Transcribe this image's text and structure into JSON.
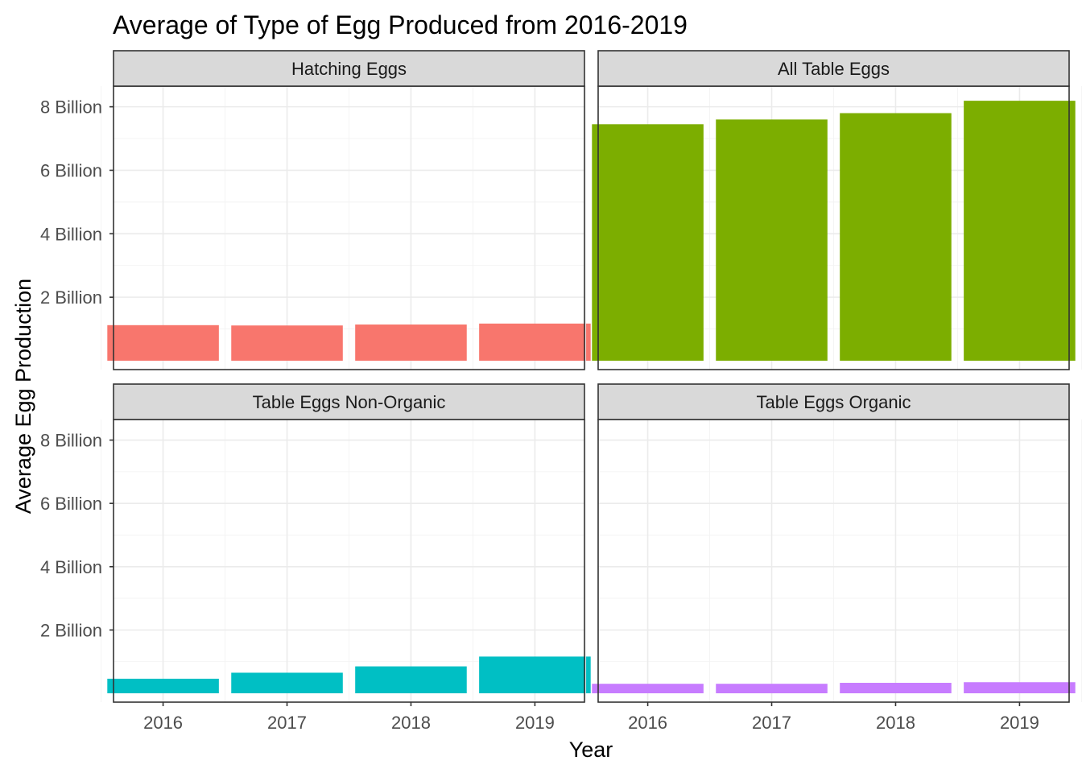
{
  "chart_data": {
    "type": "bar",
    "title": "Average of Type of Egg Produced from 2016-2019",
    "xlabel": "Year",
    "ylabel": "Average Egg Production",
    "categories": [
      "2016",
      "2017",
      "2018",
      "2019"
    ],
    "y_ticks": [
      {
        "value": 2000000000,
        "label": "2 Billion"
      },
      {
        "value": 4000000000,
        "label": "4 Billion"
      },
      {
        "value": 6000000000,
        "label": "6 Billion"
      },
      {
        "value": 8000000000,
        "label": "8 Billion"
      }
    ],
    "ylim": [
      -280000000,
      8650000000
    ],
    "grid": true,
    "facets": [
      {
        "name": "Hatching Eggs",
        "color": "#F8766D",
        "values": [
          1120000000,
          1110000000,
          1140000000,
          1170000000
        ]
      },
      {
        "name": "All Table Eggs",
        "color": "#7CAE00",
        "values": [
          7450000000,
          7600000000,
          7800000000,
          8190000000
        ]
      },
      {
        "name": "Table Eggs Non-Organic",
        "color": "#00BFC4",
        "values": [
          460000000,
          650000000,
          850000000,
          1160000000
        ]
      },
      {
        "name": "Table Eggs Organic",
        "color": "#C77CFF",
        "values": [
          300000000,
          300000000,
          330000000,
          350000000
        ]
      }
    ]
  }
}
